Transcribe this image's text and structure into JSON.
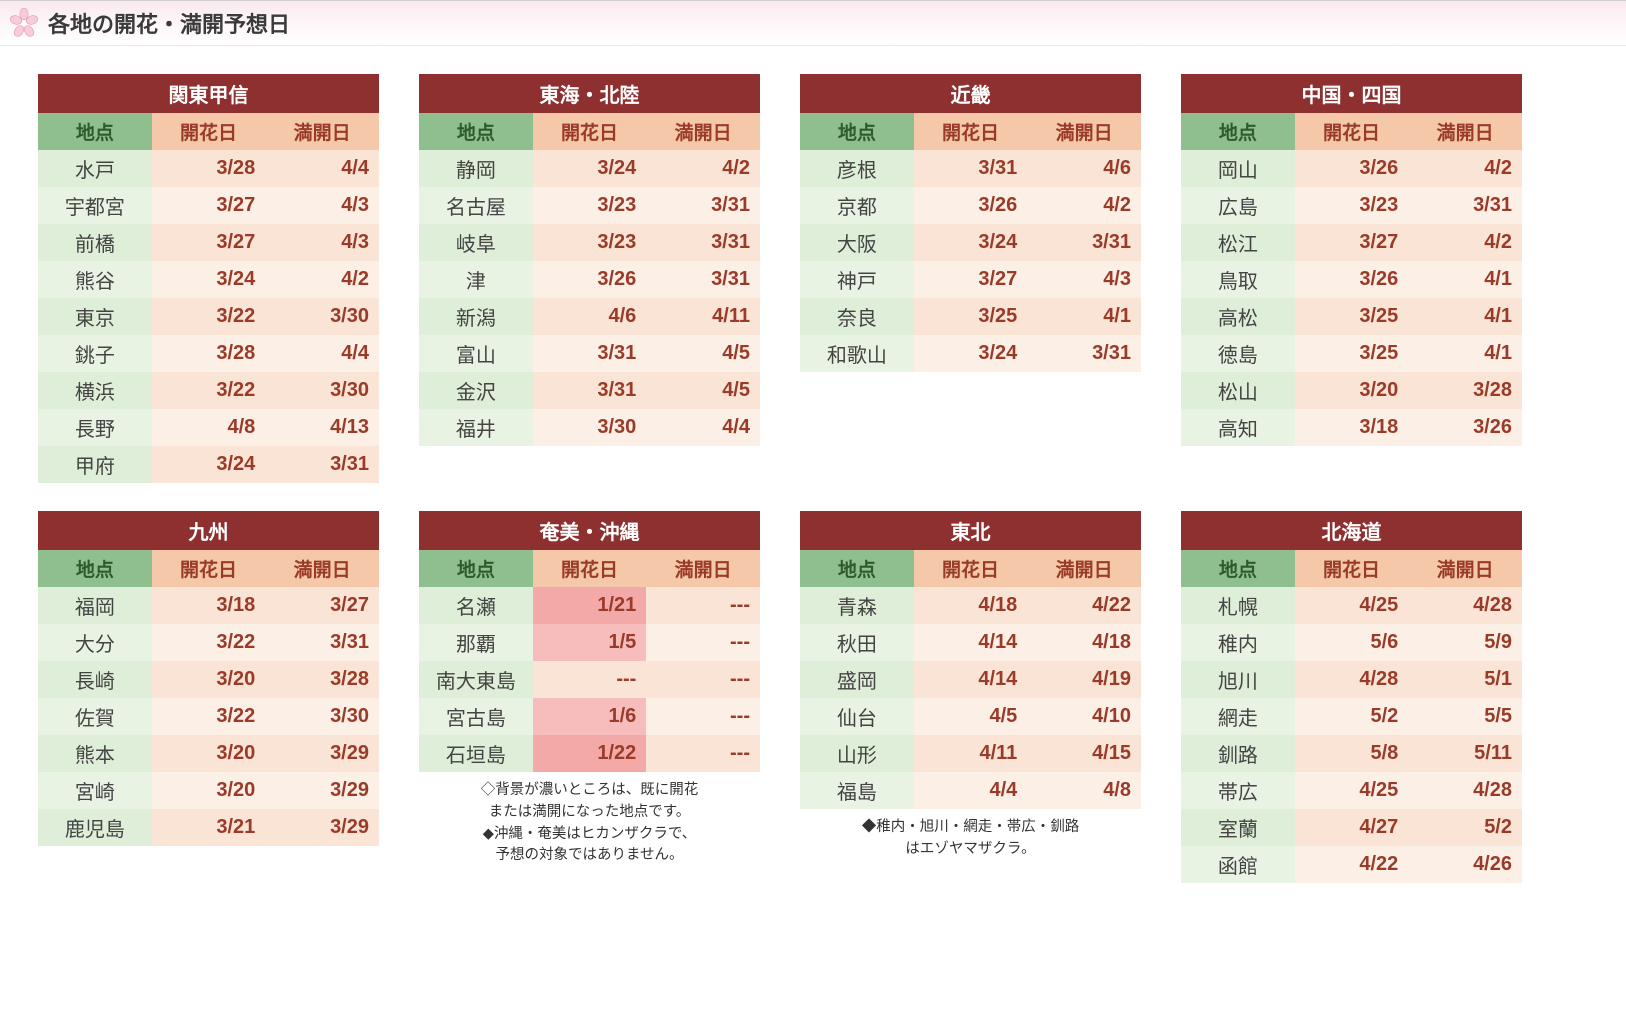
{
  "header": {
    "title": "各地の開花・満開予想日"
  },
  "labels": {
    "loc": "地点",
    "bloom": "開花日",
    "full": "満開日"
  },
  "colors": {
    "region_title_bg": "#8e3030",
    "hd_loc_bg": "#8fbf8f",
    "hd_date_bg": "#f4c8a8",
    "loc_odd": "#dfeed8",
    "loc_even": "#e9f3e3",
    "date_odd": "#f9e4d6",
    "date_even": "#fcefe5",
    "date_hl_odd": "#f4a9a9",
    "date_hl_even": "#f7bcbc",
    "date_text": "#9a3b2a"
  },
  "regions": [
    {
      "name": "関東甲信",
      "rows": [
        {
          "loc": "水戸",
          "bloom": "3/28",
          "full": "4/4"
        },
        {
          "loc": "宇都宮",
          "bloom": "3/27",
          "full": "4/3"
        },
        {
          "loc": "前橋",
          "bloom": "3/27",
          "full": "4/3"
        },
        {
          "loc": "熊谷",
          "bloom": "3/24",
          "full": "4/2"
        },
        {
          "loc": "東京",
          "bloom": "3/22",
          "full": "3/30"
        },
        {
          "loc": "銚子",
          "bloom": "3/28",
          "full": "4/4"
        },
        {
          "loc": "横浜",
          "bloom": "3/22",
          "full": "3/30"
        },
        {
          "loc": "長野",
          "bloom": "4/8",
          "full": "4/13"
        },
        {
          "loc": "甲府",
          "bloom": "3/24",
          "full": "3/31"
        }
      ]
    },
    {
      "name": "東海・北陸",
      "rows": [
        {
          "loc": "静岡",
          "bloom": "3/24",
          "full": "4/2"
        },
        {
          "loc": "名古屋",
          "bloom": "3/23",
          "full": "3/31"
        },
        {
          "loc": "岐阜",
          "bloom": "3/23",
          "full": "3/31"
        },
        {
          "loc": "津",
          "bloom": "3/26",
          "full": "3/31"
        },
        {
          "loc": "新潟",
          "bloom": "4/6",
          "full": "4/11"
        },
        {
          "loc": "富山",
          "bloom": "3/31",
          "full": "4/5"
        },
        {
          "loc": "金沢",
          "bloom": "3/31",
          "full": "4/5"
        },
        {
          "loc": "福井",
          "bloom": "3/30",
          "full": "4/4"
        }
      ]
    },
    {
      "name": "近畿",
      "rows": [
        {
          "loc": "彦根",
          "bloom": "3/31",
          "full": "4/6"
        },
        {
          "loc": "京都",
          "bloom": "3/26",
          "full": "4/2"
        },
        {
          "loc": "大阪",
          "bloom": "3/24",
          "full": "3/31"
        },
        {
          "loc": "神戸",
          "bloom": "3/27",
          "full": "4/3"
        },
        {
          "loc": "奈良",
          "bloom": "3/25",
          "full": "4/1"
        },
        {
          "loc": "和歌山",
          "bloom": "3/24",
          "full": "3/31"
        }
      ]
    },
    {
      "name": "中国・四国",
      "rows": [
        {
          "loc": "岡山",
          "bloom": "3/26",
          "full": "4/2"
        },
        {
          "loc": "広島",
          "bloom": "3/23",
          "full": "3/31"
        },
        {
          "loc": "松江",
          "bloom": "3/27",
          "full": "4/2"
        },
        {
          "loc": "鳥取",
          "bloom": "3/26",
          "full": "4/1"
        },
        {
          "loc": "高松",
          "bloom": "3/25",
          "full": "4/1"
        },
        {
          "loc": "徳島",
          "bloom": "3/25",
          "full": "4/1"
        },
        {
          "loc": "松山",
          "bloom": "3/20",
          "full": "3/28"
        },
        {
          "loc": "高知",
          "bloom": "3/18",
          "full": "3/26"
        }
      ]
    },
    {
      "name": "九州",
      "rows": [
        {
          "loc": "福岡",
          "bloom": "3/18",
          "full": "3/27"
        },
        {
          "loc": "大分",
          "bloom": "3/22",
          "full": "3/31"
        },
        {
          "loc": "長崎",
          "bloom": "3/20",
          "full": "3/28"
        },
        {
          "loc": "佐賀",
          "bloom": "3/22",
          "full": "3/30"
        },
        {
          "loc": "熊本",
          "bloom": "3/20",
          "full": "3/29"
        },
        {
          "loc": "宮崎",
          "bloom": "3/20",
          "full": "3/29"
        },
        {
          "loc": "鹿児島",
          "bloom": "3/21",
          "full": "3/29"
        }
      ]
    },
    {
      "name": "奄美・沖縄",
      "rows": [
        {
          "loc": "名瀬",
          "bloom": "1/21",
          "full": "---",
          "bloom_hl": true
        },
        {
          "loc": "那覇",
          "bloom": "1/5",
          "full": "---",
          "bloom_hl": true
        },
        {
          "loc": "南大東島",
          "bloom": "---",
          "full": "---"
        },
        {
          "loc": "宮古島",
          "bloom": "1/6",
          "full": "---",
          "bloom_hl": true
        },
        {
          "loc": "石垣島",
          "bloom": "1/22",
          "full": "---",
          "bloom_hl": true
        }
      ],
      "note": "◇背景が濃いところは、既に開花\nまたは満開になった地点です。\n◆沖縄・奄美はヒカンザクラで、\n予想の対象ではありません。"
    },
    {
      "name": "東北",
      "rows": [
        {
          "loc": "青森",
          "bloom": "4/18",
          "full": "4/22"
        },
        {
          "loc": "秋田",
          "bloom": "4/14",
          "full": "4/18"
        },
        {
          "loc": "盛岡",
          "bloom": "4/14",
          "full": "4/19"
        },
        {
          "loc": "仙台",
          "bloom": "4/5",
          "full": "4/10"
        },
        {
          "loc": "山形",
          "bloom": "4/11",
          "full": "4/15"
        },
        {
          "loc": "福島",
          "bloom": "4/4",
          "full": "4/8"
        }
      ],
      "note": "◆稚内・旭川・網走・帯広・釧路\nはエゾヤマザクラ。"
    },
    {
      "name": "北海道",
      "rows": [
        {
          "loc": "札幌",
          "bloom": "4/25",
          "full": "4/28"
        },
        {
          "loc": "稚内",
          "bloom": "5/6",
          "full": "5/9"
        },
        {
          "loc": "旭川",
          "bloom": "4/28",
          "full": "5/1"
        },
        {
          "loc": "網走",
          "bloom": "5/2",
          "full": "5/5"
        },
        {
          "loc": "釧路",
          "bloom": "5/8",
          "full": "5/11"
        },
        {
          "loc": "帯広",
          "bloom": "4/25",
          "full": "4/28"
        },
        {
          "loc": "室蘭",
          "bloom": "4/27",
          "full": "5/2"
        },
        {
          "loc": "函館",
          "bloom": "4/22",
          "full": "4/26"
        }
      ]
    }
  ]
}
